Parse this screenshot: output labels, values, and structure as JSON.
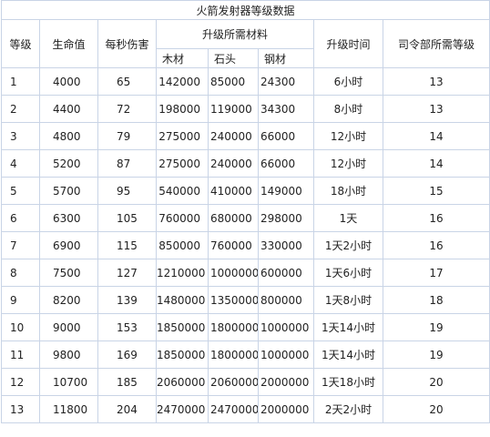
{
  "title": "火箭发射器等级数据",
  "headers": {
    "level": "等级",
    "hp": "生命值",
    "dps": "每秒伤害",
    "materials": "升级所需材料",
    "wood": "木材",
    "stone": "石头",
    "steel": "钢材",
    "time": "升级时间",
    "hq": "司令部所需等级"
  },
  "rows": [
    {
      "level": "1",
      "hp": "4000",
      "dps": "65",
      "wood": "142000",
      "stone": "85000",
      "steel": "24300",
      "time": "6小时",
      "hq": "13"
    },
    {
      "level": "2",
      "hp": "4400",
      "dps": "72",
      "wood": "198000",
      "stone": "119000",
      "steel": "34300",
      "time": "8小时",
      "hq": "13"
    },
    {
      "level": "3",
      "hp": "4800",
      "dps": "79",
      "wood": "275000",
      "stone": "240000",
      "steel": "66000",
      "time": "12小时",
      "hq": "14"
    },
    {
      "level": "4",
      "hp": "5200",
      "dps": "87",
      "wood": "275000",
      "stone": "240000",
      "steel": "66000",
      "time": "12小时",
      "hq": "14"
    },
    {
      "level": "5",
      "hp": "5700",
      "dps": "95",
      "wood": "540000",
      "stone": "410000",
      "steel": "149000",
      "time": "18小时",
      "hq": "15"
    },
    {
      "level": "6",
      "hp": "6300",
      "dps": "105",
      "wood": "760000",
      "stone": "680000",
      "steel": "298000",
      "time": "1天",
      "hq": "16"
    },
    {
      "level": "7",
      "hp": "6900",
      "dps": "115",
      "wood": "850000",
      "stone": "760000",
      "steel": "330000",
      "time": "1天2小时",
      "hq": "16"
    },
    {
      "level": "8",
      "hp": "7500",
      "dps": "127",
      "wood": "1210000",
      "stone": "1000000",
      "steel": "600000",
      "time": "1天6小时",
      "hq": "17"
    },
    {
      "level": "9",
      "hp": "8200",
      "dps": "139",
      "wood": "1480000",
      "stone": "1350000",
      "steel": "800000",
      "time": "1天8小时",
      "hq": "18"
    },
    {
      "level": "10",
      "hp": "9000",
      "dps": "153",
      "wood": "1850000",
      "stone": "1800000",
      "steel": "1000000",
      "time": "1天14小时",
      "hq": "19"
    },
    {
      "level": "11",
      "hp": "9800",
      "dps": "169",
      "wood": "1850000",
      "stone": "1800000",
      "steel": "1000000",
      "time": "1天14小时",
      "hq": "19"
    },
    {
      "level": "12",
      "hp": "10700",
      "dps": "185",
      "wood": "2060000",
      "stone": "2060000",
      "steel": "2000000",
      "time": "1天18小时",
      "hq": "20"
    },
    {
      "level": "13",
      "hp": "11800",
      "dps": "204",
      "wood": "2470000",
      "stone": "2470000",
      "steel": "2000000",
      "time": "2天2小时",
      "hq": "20"
    }
  ]
}
